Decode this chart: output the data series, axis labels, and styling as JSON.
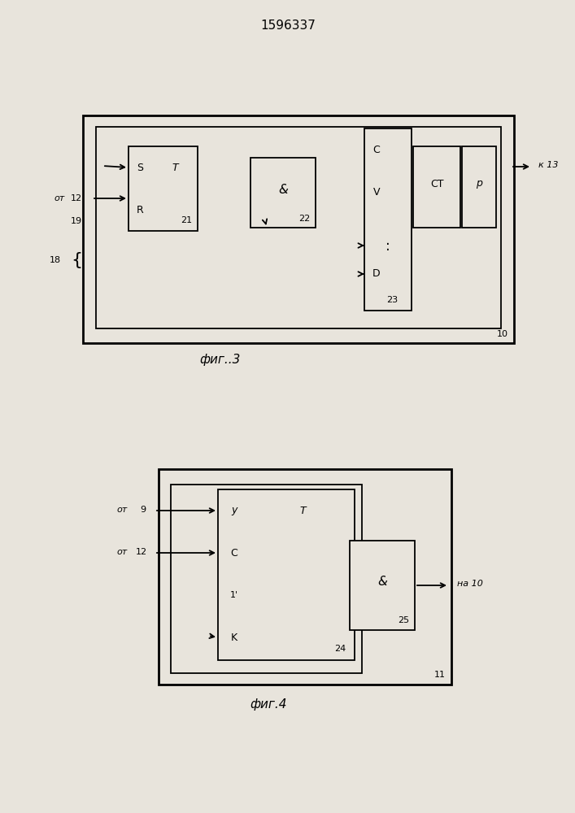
{
  "title": "1596337",
  "bg_color": "#e8e4dc",
  "fig3_caption": "фиг..3",
  "fig4_caption": "фиг.4"
}
